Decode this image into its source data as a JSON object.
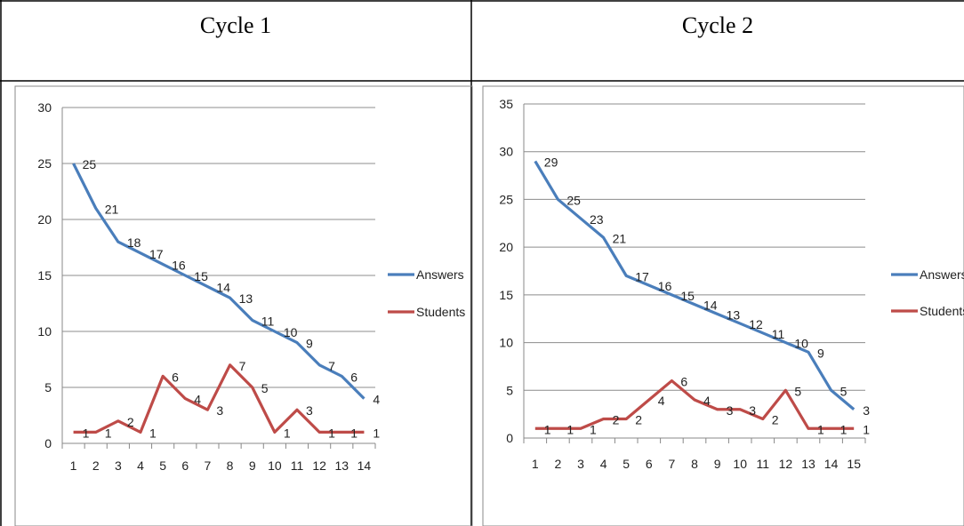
{
  "table": {
    "header_left": "Cycle 1",
    "header_right": "Cycle 2"
  },
  "chart_data": [
    {
      "type": "line",
      "x": [
        1,
        2,
        3,
        4,
        5,
        6,
        7,
        8,
        9,
        10,
        11,
        12,
        13,
        14
      ],
      "ylim": [
        0,
        30
      ],
      "yticks": [
        0,
        5,
        10,
        15,
        20,
        25,
        30
      ],
      "grid": true,
      "legend_position": "right",
      "series": [
        {
          "name": "Answers",
          "color": "#4a7ebb",
          "values": [
            25,
            21,
            18,
            17,
            16,
            15,
            14,
            13,
            11,
            10,
            9,
            7,
            6,
            4
          ]
        },
        {
          "name": "Students",
          "color": "#be4b48",
          "values": [
            1,
            1,
            2,
            1,
            6,
            4,
            3,
            7,
            5,
            1,
            3,
            1,
            1,
            1
          ]
        }
      ]
    },
    {
      "type": "line",
      "x": [
        1,
        2,
        3,
        4,
        5,
        6,
        7,
        8,
        9,
        10,
        11,
        12,
        13,
        14,
        15
      ],
      "ylim": [
        0,
        35
      ],
      "yticks": [
        0,
        5,
        10,
        15,
        20,
        25,
        30,
        35
      ],
      "grid": true,
      "legend_position": "right",
      "series": [
        {
          "name": "Answers",
          "color": "#4a7ebb",
          "values": [
            29,
            25,
            23,
            21,
            17,
            16,
            15,
            14,
            13,
            12,
            11,
            10,
            9,
            5,
            3
          ]
        },
        {
          "name": "Students",
          "color": "#be4b48",
          "values": [
            1,
            1,
            1,
            2,
            2,
            4,
            6,
            4,
            3,
            3,
            2,
            5,
            1,
            1,
            1
          ]
        }
      ]
    }
  ]
}
